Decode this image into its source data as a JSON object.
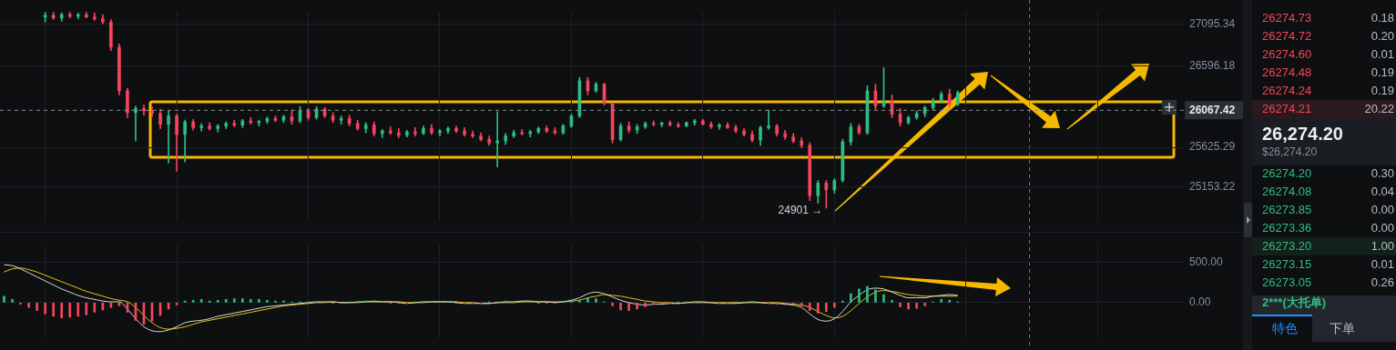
{
  "chart_data": [
    {
      "type": "candlestick",
      "categories": [
        null,
        null,
        null,
        null,
        null,
        null,
        null,
        null,
        null,
        null,
        null,
        null,
        null,
        null,
        null,
        null,
        null,
        null,
        null,
        null,
        null,
        null,
        null,
        null,
        null,
        null,
        null,
        null,
        null,
        null,
        null,
        null,
        null,
        null,
        null,
        null,
        null,
        null,
        null,
        null,
        null,
        null,
        null,
        null,
        null,
        null,
        null,
        null,
        null,
        null,
        null,
        null,
        null,
        null,
        null,
        null,
        null,
        null,
        null,
        null,
        null,
        null,
        null,
        null,
        null,
        null,
        null,
        null,
        null,
        null,
        null,
        null,
        null,
        null,
        null,
        null,
        null,
        null,
        null,
        null,
        null,
        null,
        null,
        null,
        null,
        null,
        null,
        null,
        null,
        null,
        null,
        null,
        null,
        null,
        null,
        null,
        null,
        null,
        null,
        null,
        null,
        null,
        null,
        null,
        null,
        null,
        null,
        null,
        null,
        null,
        null,
        null,
        null,
        null,
        null,
        null,
        null,
        null,
        null,
        null,
        null,
        null,
        null,
        null,
        null,
        null,
        null,
        null,
        null,
        null,
        null,
        null,
        null,
        null,
        null,
        null,
        null,
        null,
        null,
        null,
        null,
        null,
        null,
        null
      ],
      "ohlc": [
        null,
        null,
        null,
        null,
        null,
        [
          27180,
          27235,
          27120,
          27200
        ],
        [
          27200,
          27238,
          27150,
          27170
        ],
        [
          27170,
          27230,
          27130,
          27210
        ],
        [
          27210,
          27238,
          27170,
          27190
        ],
        [
          27190,
          27230,
          27160,
          27205
        ],
        [
          27205,
          27238,
          27170,
          27180
        ],
        [
          27180,
          27230,
          27140,
          27160
        ],
        [
          27160,
          27210,
          27100,
          27120
        ],
        [
          27120,
          27150,
          26780,
          26820
        ],
        [
          26820,
          26860,
          26250,
          26300
        ],
        [
          26300,
          26330,
          25980,
          26040
        ],
        [
          26040,
          26120,
          25700,
          26090
        ],
        [
          26090,
          26130,
          26010,
          26060
        ],
        [
          26060,
          26110,
          25990,
          26030
        ],
        [
          26030,
          26080,
          25850,
          25900
        ],
        [
          25900,
          26060,
          25440,
          26000
        ],
        [
          26000,
          26020,
          25340,
          25780
        ],
        [
          25780,
          25950,
          25450,
          25930
        ],
        [
          25930,
          25960,
          25830,
          25860
        ],
        [
          25860,
          25910,
          25820,
          25880
        ],
        [
          25880,
          25920,
          25830,
          25850
        ],
        [
          25850,
          25900,
          25810,
          25880
        ],
        [
          25880,
          25930,
          25850,
          25910
        ],
        [
          25910,
          25950,
          25870,
          25890
        ],
        [
          25890,
          25960,
          25860,
          25940
        ],
        [
          25940,
          25980,
          25900,
          25920
        ],
        [
          25920,
          25950,
          25880,
          25935
        ],
        [
          25935,
          25990,
          25910,
          25970
        ],
        [
          25970,
          26000,
          25930,
          25950
        ],
        [
          25950,
          26010,
          25920,
          25990
        ],
        [
          25990,
          26070,
          25900,
          25940
        ],
        [
          25940,
          26110,
          25920,
          26060
        ],
        [
          26060,
          26090,
          25950,
          25980
        ],
        [
          25980,
          26110,
          25960,
          26080
        ],
        [
          26080,
          26100,
          25980,
          26000
        ],
        [
          26000,
          26040,
          25920,
          25950
        ],
        [
          25950,
          26000,
          25900,
          25970
        ],
        [
          25970,
          26010,
          25880,
          25910
        ],
        [
          25910,
          25950,
          25830,
          25850
        ],
        [
          25850,
          25920,
          25800,
          25890
        ],
        [
          25890,
          25930,
          25760,
          25790
        ],
        [
          25790,
          25840,
          25740,
          25820
        ],
        [
          25820,
          25870,
          25780,
          25800
        ],
        [
          25800,
          25850,
          25740,
          25770
        ],
        [
          25770,
          25830,
          25750,
          25810
        ],
        [
          25810,
          25860,
          25760,
          25790
        ],
        [
          25790,
          25880,
          25780,
          25850
        ],
        [
          25850,
          25900,
          25780,
          25800
        ],
        [
          25800,
          25840,
          25760,
          25820
        ],
        [
          25820,
          25870,
          25790,
          25850
        ],
        [
          25850,
          25880,
          25800,
          25820
        ],
        [
          25820,
          25860,
          25760,
          25780
        ],
        [
          25780,
          25820,
          25740,
          25760
        ],
        [
          25760,
          25800,
          25700,
          25720
        ],
        [
          25720,
          25760,
          25650,
          25680
        ],
        [
          25680,
          26050,
          25390,
          25700
        ],
        [
          25700,
          25790,
          25660,
          25760
        ],
        [
          25760,
          25830,
          25740,
          25800
        ],
        [
          25800,
          25840,
          25770,
          25790
        ],
        [
          25790,
          25830,
          25750,
          25810
        ],
        [
          25810,
          25870,
          25790,
          25850
        ],
        [
          25850,
          25880,
          25800,
          25820
        ],
        [
          25820,
          25860,
          25780,
          25800
        ],
        [
          25800,
          25900,
          25780,
          25880
        ],
        [
          25880,
          26020,
          25860,
          26000
        ],
        [
          26000,
          26460,
          25980,
          26420
        ],
        [
          26420,
          26460,
          26250,
          26300
        ],
        [
          26300,
          26400,
          26280,
          26380
        ],
        [
          26380,
          26390,
          26130,
          26150
        ],
        [
          26150,
          26160,
          25680,
          25720
        ],
        [
          25720,
          25910,
          25700,
          25880
        ],
        [
          25880,
          25930,
          25800,
          25830
        ],
        [
          25830,
          25900,
          25790,
          25870
        ],
        [
          25870,
          25930,
          25850,
          25910
        ],
        [
          25910,
          25940,
          25880,
          25900
        ],
        [
          25900,
          25930,
          25870,
          25915
        ],
        [
          25915,
          25940,
          25880,
          25895
        ],
        [
          25895,
          25920,
          25860,
          25880
        ],
        [
          25880,
          25930,
          25870,
          25920
        ],
        [
          25920,
          25960,
          25890,
          25940
        ],
        [
          25940,
          25960,
          25890,
          25900
        ],
        [
          25900,
          25930,
          25850,
          25870
        ],
        [
          25870,
          25910,
          25840,
          25890
        ],
        [
          25890,
          25920,
          25850,
          25860
        ],
        [
          25860,
          25890,
          25800,
          25820
        ],
        [
          25820,
          25850,
          25760,
          25780
        ],
        [
          25780,
          25820,
          25690,
          25710
        ],
        [
          25710,
          25880,
          25650,
          25860
        ],
        [
          25860,
          26070,
          25840,
          25880
        ],
        [
          25880,
          25900,
          25760,
          25790
        ],
        [
          25790,
          25830,
          25720,
          25750
        ],
        [
          25750,
          25790,
          25680,
          25700
        ],
        [
          25700,
          25740,
          25620,
          25650
        ],
        [
          25650,
          25680,
          24990,
          25050
        ],
        [
          25050,
          25230,
          24960,
          25200
        ],
        [
          25200,
          25230,
          24901,
          25120
        ],
        [
          25120,
          25250,
          25080,
          25230
        ],
        [
          25230,
          25720,
          25210,
          25690
        ],
        [
          25690,
          25910,
          25650,
          25870
        ],
        [
          25870,
          25900,
          25780,
          25800
        ],
        [
          25800,
          26360,
          25780,
          26300
        ],
        [
          26300,
          26380,
          26080,
          26120
        ],
        [
          26120,
          26578,
          26100,
          26180
        ],
        [
          26180,
          26250,
          25980,
          26020
        ],
        [
          26020,
          26090,
          25880,
          25920
        ],
        [
          25920,
          26000,
          25900,
          25980
        ],
        [
          25980,
          26060,
          25960,
          26030
        ],
        [
          26030,
          26120,
          25990,
          26100
        ],
        [
          26100,
          26210,
          26070,
          26180
        ],
        [
          26180,
          26290,
          26150,
          26260
        ],
        [
          26260,
          26320,
          26100,
          26140
        ],
        [
          26140,
          26300,
          26120,
          26280
        ],
        null,
        null,
        null,
        null,
        null,
        null,
        null,
        null,
        null,
        null,
        null,
        null,
        null,
        null,
        null,
        null,
        null,
        null,
        null,
        null,
        null,
        null,
        null,
        null,
        null,
        null,
        null
      ],
      "colors": [
        null,
        null,
        null,
        null,
        null,
        "#2ebd85",
        "#f6465d",
        "#2ebd85",
        "#f6465d",
        "#2ebd85",
        "#f6465d",
        "#f6465d",
        "#f6465d",
        "#f6465d",
        "#f6465d",
        "#f6465d",
        "#2ebd85",
        "#f6465d",
        "#f6465d",
        "#f6465d",
        "#2ebd85",
        "#f6465d",
        "#2ebd85",
        "#f6465d",
        "#2ebd85",
        "#f6465d",
        "#2ebd85",
        "#2ebd85",
        "#f6465d",
        "#2ebd85",
        "#f6465d",
        "#2ebd85",
        "#2ebd85",
        "#f6465d",
        "#2ebd85",
        "#f6465d",
        "#2ebd85",
        "#f6465d",
        "#2ebd85",
        "#f6465d",
        "#f6465d",
        "#2ebd85",
        "#f6465d",
        "#f6465d",
        "#2ebd85",
        "#f6465d",
        "#2ebd85",
        "#f6465d",
        "#f6465d",
        "#2ebd85",
        "#f6465d",
        "#2ebd85",
        "#f6465d",
        "#2ebd85",
        "#2ebd85",
        "#f6465d",
        "#f6465d",
        "#f6465d",
        "#f6465d",
        "#f6465d",
        "#2ebd85",
        "#2ebd85",
        "#2ebd85",
        "#f6465d",
        "#2ebd85",
        "#2ebd85",
        "#f6465d",
        "#f6465d",
        "#2ebd85",
        "#2ebd85",
        "#2ebd85",
        "#f6465d",
        "#2ebd85",
        "#f6465d",
        "#f6465d",
        "#2ebd85",
        "#f6465d",
        "#2ebd85",
        "#2ebd85",
        "#f6465d",
        "#2ebd85",
        "#f6465d",
        "#f6465d",
        "#2ebd85",
        "#2ebd85",
        "#f6465d",
        "#f6465d",
        "#2ebd85",
        "#f6465d",
        "#f6465d",
        "#f6465d",
        "#f6465d",
        "#2ebd85",
        "#2ebd85",
        "#f6465d",
        "#f6465d",
        "#f6465d",
        "#f6465d",
        "#f6465d",
        "#2ebd85",
        "#f6465d",
        "#2ebd85",
        "#2ebd85",
        "#2ebd85",
        "#f6465d",
        "#2ebd85",
        "#f6465d",
        "#2ebd85",
        "#f6465d",
        "#f6465d",
        "#2ebd85",
        "#2ebd85",
        "#2ebd85",
        "#2ebd85",
        "#2ebd85",
        "#f6465d",
        "#2ebd85",
        null,
        null,
        null,
        null,
        null,
        null,
        null,
        null,
        null,
        null,
        null,
        null,
        null,
        null,
        null,
        null,
        null,
        null,
        null,
        null,
        null,
        null,
        null,
        null,
        null,
        null,
        null
      ],
      "ylim": [
        24750,
        27240
      ],
      "yticks": [
        25153.22,
        25625.29,
        26596.18,
        27095.34
      ],
      "ref_lines": [
        {
          "axis": "y",
          "value": 26067.42,
          "label": "26067.42",
          "color": "#8a8f98",
          "line_style": "dashed"
        }
      ],
      "annotations": [
        "24901 →",
        "26274.73",
        "0.18",
        "26274.72",
        "0.20",
        "26274.60",
        "0.01",
        "26274.48",
        "0.19",
        "26274.24",
        "0.19",
        "26274.21",
        "20.22",
        "26,274.20",
        "$26,274.20",
        "26274.20",
        "0.30",
        "26274.08",
        "0.04",
        "26273.85",
        "0.00",
        "26273.36",
        "0.00",
        "26273.20",
        "1.00",
        "26273.15",
        "0.01",
        "26273.05",
        "0.26",
        "2***(大托单)",
        "特色",
        "下单"
      ],
      "grid": true,
      "tick_labels": "y"
    },
    {
      "type": "bar",
      "categories": [
        null,
        null,
        null,
        null,
        null,
        null,
        null,
        null,
        null,
        null,
        null,
        null,
        null,
        null,
        null,
        null,
        null,
        null,
        null,
        null,
        null,
        null,
        null,
        null,
        null,
        null,
        null,
        null,
        null,
        null,
        null,
        null,
        null,
        null,
        null,
        null,
        null,
        null,
        null,
        null,
        null,
        null,
        null,
        null,
        null,
        null,
        null,
        null,
        null,
        null,
        null,
        null,
        null,
        null,
        null,
        null,
        null,
        null,
        null,
        null,
        null,
        null,
        null,
        null,
        null,
        null,
        null,
        null,
        null,
        null,
        null,
        null,
        null,
        null,
        null,
        null,
        null,
        null,
        null,
        null,
        null,
        null,
        null,
        null,
        null,
        null,
        null,
        null,
        null,
        null,
        null,
        null,
        null,
        null,
        null,
        null,
        null,
        null,
        null,
        null,
        null,
        null,
        null,
        null,
        null,
        null,
        null,
        null,
        null,
        null,
        null,
        null,
        null,
        null,
        null,
        null,
        null,
        null,
        null,
        null,
        null,
        null,
        null,
        null,
        null,
        null,
        null,
        null,
        null,
        null,
        null,
        null,
        null,
        null,
        null,
        null,
        null,
        null,
        null,
        null,
        null,
        null,
        null,
        null
      ],
      "series": [
        {
          "type": "bar",
          "color": "#2ebd85",
          "values": [
            80,
            40,
            null,
            null,
            null,
            null,
            null,
            null,
            null,
            null,
            null,
            null,
            null,
            null,
            null,
            null,
            null,
            null,
            null,
            null,
            null,
            null,
            20,
            30,
            40,
            20,
            30,
            40,
            50,
            50,
            40,
            40,
            30,
            20,
            20,
            10,
            10,
            10,
            10,
            10,
            null,
            null,
            10,
            10,
            20,
            10,
            10,
            null,
            null,
            null,
            10,
            10,
            10,
            10,
            10,
            null,
            null,
            null,
            null,
            10,
            10,
            20,
            10,
            10,
            10,
            null,
            null,
            null,
            10,
            20,
            30,
            60,
            50,
            10,
            null,
            null,
            null,
            null,
            null,
            null,
            null,
            null,
            10,
            10,
            10,
            10,
            null,
            null,
            null,
            10,
            10,
            10,
            null,
            null,
            null,
            null,
            null,
            null,
            null,
            null,
            null,
            null,
            20,
            110,
            170,
            200,
            160,
            100,
            30,
            null,
            null,
            null,
            null,
            10,
            40,
            30,
            10,
            null,
            null,
            null,
            null,
            null,
            null,
            null,
            null,
            null,
            null,
            null,
            null,
            null,
            null,
            null,
            null,
            null,
            null,
            null,
            null,
            null,
            null,
            null,
            null,
            null,
            null,
            null
          ]
        },
        {
          "type": "bar",
          "color": "#f6465d",
          "values": [
            null,
            null,
            -20,
            -60,
            -100,
            -140,
            -170,
            -190,
            -180,
            -170,
            -150,
            -120,
            -90,
            -60,
            -40,
            -120,
            -220,
            -270,
            -230,
            -160,
            -80,
            -30,
            null,
            null,
            null,
            null,
            null,
            null,
            null,
            null,
            null,
            null,
            null,
            null,
            null,
            null,
            null,
            null,
            null,
            null,
            -10,
            -10,
            null,
            null,
            null,
            null,
            null,
            -10,
            -10,
            -10,
            null,
            null,
            null,
            null,
            null,
            -10,
            -10,
            -10,
            -10,
            null,
            null,
            null,
            null,
            null,
            null,
            -10,
            -10,
            -10,
            null,
            null,
            null,
            null,
            null,
            null,
            -40,
            -90,
            -100,
            -80,
            -50,
            -20,
            -10,
            -10,
            null,
            null,
            null,
            null,
            -10,
            -10,
            -10,
            null,
            null,
            null,
            -10,
            -10,
            -20,
            -10,
            -20,
            -40,
            -100,
            -130,
            -110,
            -60,
            null,
            null,
            null,
            null,
            null,
            null,
            null,
            -50,
            -80,
            -70,
            -40,
            null,
            null,
            null,
            null,
            null,
            null,
            null,
            null,
            null,
            null,
            null,
            null,
            null,
            null,
            null,
            null,
            null,
            null,
            null,
            null,
            null,
            null,
            null,
            null,
            null,
            null,
            null,
            null,
            null,
            null,
            null
          ]
        },
        {
          "type": "line",
          "color": "#d9d9d9",
          "values": [
            470,
            460,
            420,
            370,
            320,
            270,
            220,
            170,
            130,
            90,
            60,
            40,
            20,
            10,
            10,
            -80,
            -200,
            -300,
            -350,
            -360,
            -340,
            -300,
            -250,
            -230,
            -220,
            -200,
            -170,
            -150,
            -130,
            -110,
            -90,
            -70,
            -50,
            -40,
            -30,
            -20,
            -10,
            0,
            10,
            10,
            10,
            0,
            0,
            10,
            10,
            20,
            10,
            10,
            0,
            -10,
            0,
            10,
            10,
            10,
            10,
            0,
            -10,
            -10,
            -10,
            -10,
            0,
            10,
            10,
            20,
            20,
            10,
            10,
            0,
            10,
            30,
            60,
            110,
            130,
            110,
            70,
            30,
            0,
            -20,
            -30,
            -20,
            -20,
            -10,
            -10,
            0,
            10,
            10,
            0,
            -10,
            -10,
            -10,
            0,
            10,
            0,
            -10,
            -10,
            -20,
            -30,
            -60,
            -140,
            -210,
            -230,
            -200,
            -110,
            10,
            90,
            160,
            180,
            170,
            130,
            90,
            60,
            60,
            60,
            80,
            90,
            100,
            90,
            null,
            null,
            null,
            null,
            null,
            null,
            null,
            null,
            null,
            null,
            null,
            null,
            null,
            null,
            null,
            null,
            null,
            null,
            null,
            null,
            null,
            null,
            null,
            null,
            null,
            null,
            null
          ]
        },
        {
          "type": "line",
          "color": "#e8c41a",
          "values": [
            380,
            420,
            430,
            410,
            380,
            340,
            300,
            260,
            220,
            180,
            140,
            110,
            80,
            50,
            30,
            10,
            -60,
            -160,
            -250,
            -310,
            -330,
            -320,
            -300,
            -270,
            -240,
            -220,
            -200,
            -180,
            -160,
            -140,
            -120,
            -100,
            -80,
            -60,
            -40,
            -30,
            -20,
            -10,
            0,
            0,
            10,
            0,
            0,
            0,
            10,
            10,
            10,
            10,
            10,
            0,
            0,
            0,
            10,
            10,
            10,
            10,
            0,
            0,
            -10,
            -10,
            0,
            0,
            0,
            10,
            10,
            10,
            10,
            10,
            10,
            20,
            30,
            60,
            80,
            100,
            90,
            80,
            60,
            40,
            20,
            10,
            0,
            0,
            -10,
            0,
            0,
            0,
            0,
            0,
            0,
            0,
            0,
            0,
            0,
            0,
            0,
            -10,
            -20,
            -30,
            -60,
            -110,
            -160,
            -190,
            -170,
            -100,
            -10,
            70,
            130,
            150,
            140,
            120,
            100,
            90,
            80,
            80,
            80,
            80,
            80,
            null,
            null,
            null,
            null,
            null,
            null,
            null,
            null,
            null,
            null,
            null,
            null,
            null,
            null,
            null,
            null,
            null,
            null,
            null,
            null,
            null,
            null,
            null,
            null,
            null,
            null,
            null
          ]
        }
      ],
      "ylim": [
        -440,
        720
      ],
      "yticks": [
        {
          "value": 500,
          "label": "500.00"
        },
        {
          "value": 0,
          "label": "0.00"
        }
      ],
      "grid": true,
      "marker": "none",
      "tick_labels": "y"
    }
  ]
}
